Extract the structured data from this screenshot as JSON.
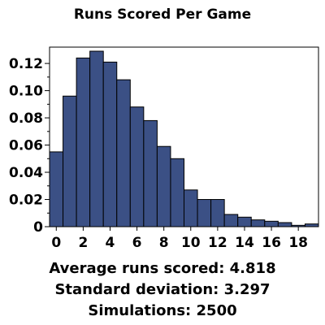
{
  "chart_data": {
    "type": "bar",
    "title": "Runs Scored Per Game",
    "xlabel": "",
    "ylabel": "",
    "categories": [
      "0",
      "1",
      "2",
      "3",
      "4",
      "5",
      "6",
      "7",
      "8",
      "9",
      "10",
      "11",
      "12",
      "13",
      "14",
      "15",
      "16",
      "17",
      "18",
      "19"
    ],
    "values": [
      0.055,
      0.096,
      0.124,
      0.129,
      0.121,
      0.108,
      0.088,
      0.078,
      0.059,
      0.05,
      0.027,
      0.02,
      0.02,
      0.009,
      0.007,
      0.005,
      0.004,
      0.003,
      0.001,
      0.002
    ],
    "x_tick_labels": [
      "0",
      "2",
      "4",
      "6",
      "8",
      "10",
      "12",
      "14",
      "16",
      "18"
    ],
    "y_tick_labels": [
      "0",
      "0.02",
      "0.04",
      "0.06",
      "0.08",
      "0.10",
      "0.12"
    ],
    "ylim": [
      0,
      0.132
    ],
    "grid": false,
    "bar_color": "#3b5085",
    "bar_edge_color": "#000000"
  },
  "stats": {
    "average": "Average runs scored: 4.818",
    "sd": "Standard deviation: 3.297",
    "simulations": "Simulations: 2500"
  }
}
